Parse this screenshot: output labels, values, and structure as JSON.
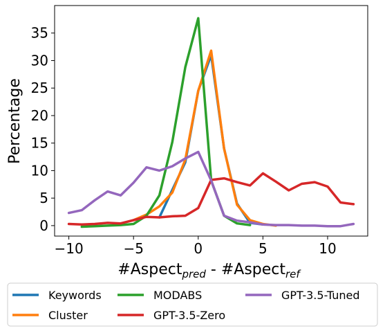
{
  "chart_data": {
    "type": "line",
    "xlabel": {
      "base": "#Aspect",
      "sub1": "pred",
      "mid": " - #Aspect",
      "sub2": "ref"
    },
    "ylabel": "Percentage",
    "xlim": [
      -11.1,
      13.1
    ],
    "ylim": [
      -1.9,
      40.0
    ],
    "xticks": [
      -10,
      -5,
      0,
      5,
      10
    ],
    "yticks": [
      0,
      5,
      10,
      15,
      20,
      25,
      30,
      35
    ],
    "grid": false,
    "legend_position": "bottom",
    "series": [
      {
        "name": "Keywords",
        "color": "#1f77b4",
        "points": [
          [
            -3,
            1.5
          ],
          [
            -2,
            6.5
          ],
          [
            -1,
            11.5
          ],
          [
            0,
            24.5
          ],
          [
            1,
            31.0
          ],
          [
            2,
            14.0
          ],
          [
            3,
            4.0
          ],
          [
            4,
            0.5
          ],
          [
            5,
            0.2
          ]
        ]
      },
      {
        "name": "Cluster",
        "color": "#ff7f0e",
        "points": [
          [
            -5,
            1.0
          ],
          [
            -4,
            2.0
          ],
          [
            -3,
            3.5
          ],
          [
            -2,
            6.0
          ],
          [
            -1,
            12.0
          ],
          [
            0,
            24.5
          ],
          [
            1,
            31.8
          ],
          [
            2,
            14.0
          ],
          [
            3,
            3.8
          ],
          [
            4,
            1.0
          ],
          [
            5,
            0.3
          ],
          [
            6,
            0.0
          ]
        ]
      },
      {
        "name": "MODABS",
        "color": "#2ca02c",
        "points": [
          [
            -9,
            -0.2
          ],
          [
            -8,
            -0.1
          ],
          [
            -7,
            0.0
          ],
          [
            -6,
            0.1
          ],
          [
            -5,
            0.3
          ],
          [
            -4,
            1.8
          ],
          [
            -3,
            5.5
          ],
          [
            -2,
            15.2
          ],
          [
            -1,
            28.8
          ],
          [
            0,
            37.7
          ],
          [
            1,
            8.2
          ],
          [
            2,
            1.8
          ],
          [
            3,
            0.4
          ],
          [
            4,
            0.1
          ]
        ]
      },
      {
        "name": "GPT-3.5-Zero",
        "color": "#d62728",
        "points": [
          [
            -10,
            0.3
          ],
          [
            -9,
            0.2
          ],
          [
            -8,
            0.3
          ],
          [
            -7,
            0.5
          ],
          [
            -6,
            0.4
          ],
          [
            -5,
            1.0
          ],
          [
            -4,
            1.6
          ],
          [
            -3,
            1.5
          ],
          [
            -2,
            1.7
          ],
          [
            -1,
            1.8
          ],
          [
            0,
            3.2
          ],
          [
            1,
            8.3
          ],
          [
            2,
            8.6
          ],
          [
            3,
            7.9
          ],
          [
            4,
            7.3
          ],
          [
            5,
            9.5
          ],
          [
            6,
            8.0
          ],
          [
            7,
            6.4
          ],
          [
            8,
            7.6
          ],
          [
            9,
            7.9
          ],
          [
            10,
            7.1
          ],
          [
            11,
            4.2
          ],
          [
            12,
            3.9
          ]
        ]
      },
      {
        "name": "GPT-3.5-Tuned",
        "color": "#9467bd",
        "points": [
          [
            -10,
            2.3
          ],
          [
            -9,
            2.8
          ],
          [
            -8,
            4.6
          ],
          [
            -7,
            6.2
          ],
          [
            -6,
            5.5
          ],
          [
            -5,
            7.8
          ],
          [
            -4,
            10.6
          ],
          [
            -3,
            10.0
          ],
          [
            -2,
            10.8
          ],
          [
            -1,
            12.2
          ],
          [
            0,
            13.4
          ],
          [
            1,
            8.2
          ],
          [
            2,
            1.8
          ],
          [
            3,
            0.9
          ],
          [
            4,
            0.6
          ],
          [
            5,
            0.2
          ],
          [
            6,
            0.1
          ],
          [
            7,
            0.1
          ],
          [
            8,
            0.0
          ],
          [
            9,
            0.0
          ],
          [
            10,
            -0.1
          ],
          [
            11,
            -0.1
          ],
          [
            12,
            0.3
          ]
        ]
      }
    ]
  }
}
